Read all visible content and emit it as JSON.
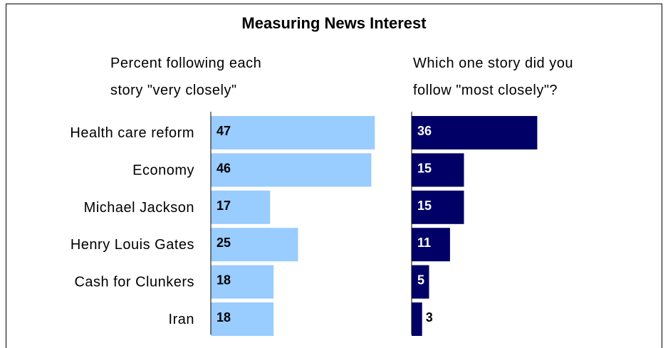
{
  "chart_data": {
    "title": "Measuring News Interest",
    "categories": [
      "Health care reform",
      "Economy",
      "Michael Jackson",
      "Henry Louis Gates",
      "Cash for Clunkers",
      "Iran"
    ],
    "panels": [
      {
        "type": "bar",
        "orientation": "horizontal",
        "title": "Percent following each story \"very closely\"",
        "title_lines": [
          "Percent following each",
          "story \"very closely\""
        ],
        "values": [
          47,
          46,
          17,
          25,
          18,
          18
        ],
        "color": "#99CCFF",
        "label_color": "#000000"
      },
      {
        "type": "bar",
        "orientation": "horizontal",
        "title": "Which one story did you follow \"most closely\"?",
        "title_lines": [
          "Which one story did you",
          "follow \"most closely\"?"
        ],
        "values": [
          36,
          15,
          15,
          11,
          5,
          3
        ],
        "color": "#000066",
        "label_color": "#FFFFFF"
      }
    ]
  }
}
